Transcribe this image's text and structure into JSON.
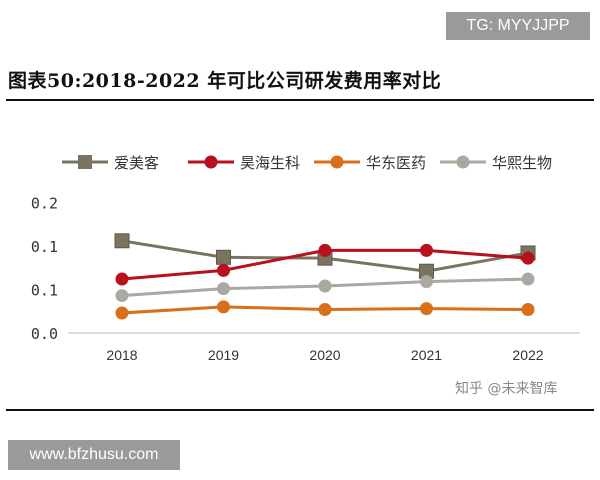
{
  "watermark_top": "TG: MYYJJPP",
  "watermark_bottom": "www.bfzhusu.com",
  "source_watermark": "知乎 @未来智库",
  "chart_data": {
    "type": "line",
    "title": "图表50:2018-2022 年可比公司研发费用率对比",
    "categories": [
      "2018",
      "2019",
      "2020",
      "2021",
      "2022"
    ],
    "yticks": [
      "0.0",
      "0.1",
      "0.1",
      "0.2"
    ],
    "ytick_values": [
      0,
      0.05,
      0.1,
      0.15
    ],
    "ylim": [
      0,
      0.15
    ],
    "grid": false,
    "legend_position": "top",
    "series": [
      {
        "name": "爱美客",
        "marker": "square",
        "color": "#7a7360",
        "values": [
          0.106,
          0.087,
          0.086,
          0.071,
          0.092
        ]
      },
      {
        "name": "昊海生科",
        "marker": "circle",
        "color": "#b8101c",
        "values": [
          0.062,
          0.072,
          0.095,
          0.095,
          0.086
        ]
      },
      {
        "name": "华东医药",
        "marker": "circle",
        "color": "#d86f1a",
        "values": [
          0.023,
          0.03,
          0.027,
          0.028,
          0.027
        ]
      },
      {
        "name": "华熙生物",
        "marker": "circle",
        "color": "#a9a9a2",
        "values": [
          0.043,
          0.051,
          0.054,
          0.059,
          0.062
        ]
      }
    ]
  }
}
